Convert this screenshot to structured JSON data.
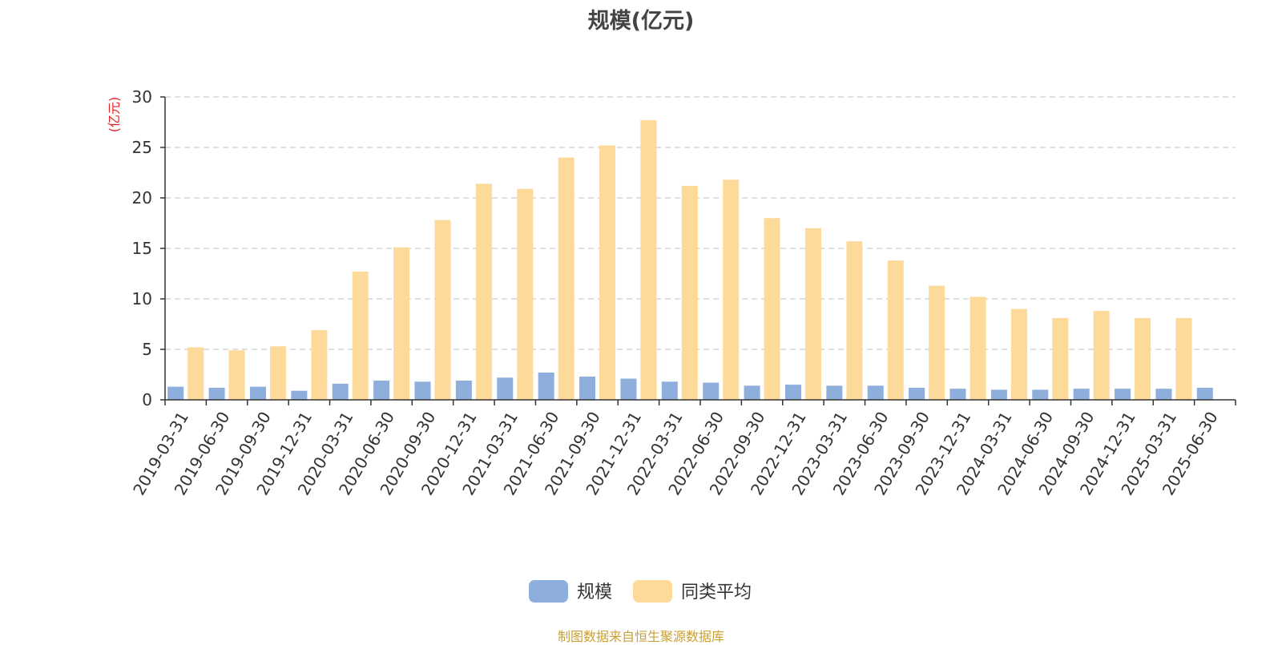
{
  "chart_data": {
    "type": "bar",
    "title": "规模(亿元)",
    "ylabel": "(亿元)",
    "xlabel": "",
    "ylim": [
      0,
      30
    ],
    "yticks": [
      0,
      5,
      10,
      15,
      20,
      25,
      30
    ],
    "grid": true,
    "legend_position": "bottom",
    "categories": [
      "2019-03-31",
      "2019-06-30",
      "2019-09-30",
      "2019-12-31",
      "2020-03-31",
      "2020-06-30",
      "2020-09-30",
      "2020-12-31",
      "2021-03-31",
      "2021-06-30",
      "2021-09-30",
      "2021-12-31",
      "2022-03-31",
      "2022-06-30",
      "2022-09-30",
      "2022-12-31",
      "2023-03-31",
      "2023-06-30",
      "2023-09-30",
      "2023-12-31",
      "2024-03-31",
      "2024-06-30",
      "2024-09-30",
      "2024-12-31",
      "2025-03-31",
      "2025-06-30"
    ],
    "series": [
      {
        "name": "规模",
        "color": "#8eaedc",
        "values": [
          1.3,
          1.2,
          1.3,
          0.9,
          1.6,
          1.9,
          1.8,
          1.9,
          2.2,
          2.7,
          2.3,
          2.1,
          1.8,
          1.7,
          1.4,
          1.5,
          1.4,
          1.4,
          1.2,
          1.1,
          1.0,
          1.0,
          1.1,
          1.1,
          1.1,
          1.2
        ]
      },
      {
        "name": "同类平均",
        "color": "#fdd99a",
        "values": [
          5.2,
          4.9,
          5.3,
          6.9,
          12.7,
          15.1,
          17.8,
          21.4,
          20.9,
          24.0,
          25.2,
          27.7,
          21.2,
          21.8,
          18.0,
          17.0,
          15.7,
          13.8,
          11.3,
          10.2,
          9.0,
          8.1,
          8.8,
          8.1,
          8.1,
          null
        ]
      }
    ]
  },
  "source_note": "制图数据来自恒生聚源数据库"
}
